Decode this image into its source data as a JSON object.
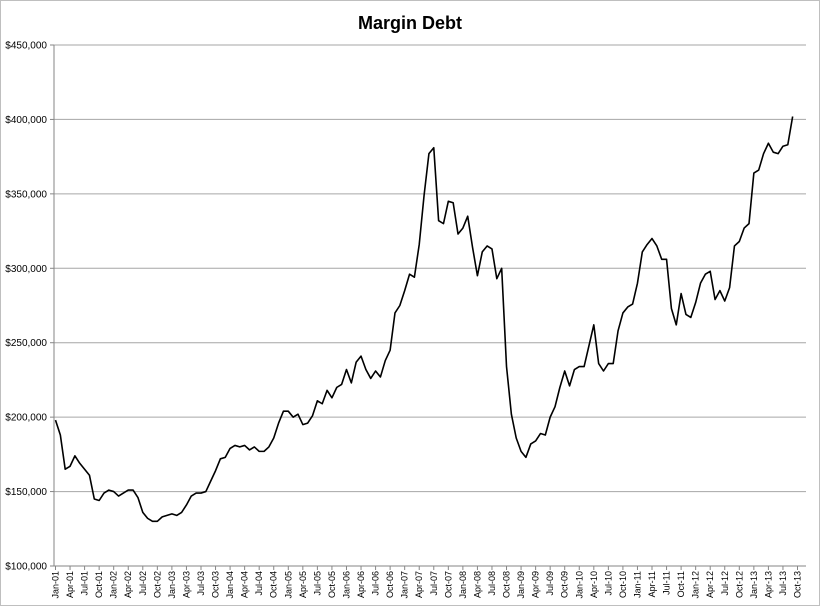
{
  "chart_data": {
    "type": "line",
    "title": "Margin Debt",
    "xlabel": "",
    "ylabel": "",
    "ylim": [
      100000,
      450000
    ],
    "yticks": [
      100000,
      150000,
      200000,
      250000,
      300000,
      350000,
      400000,
      450000
    ],
    "ytick_labels": [
      "$100,000",
      "$150,000",
      "$200,000",
      "$250,000",
      "$300,000",
      "$350,000",
      "$400,000",
      "$450,000"
    ],
    "xtick_labels": [
      "Jan-01",
      "Apr-01",
      "Jul-01",
      "Oct-01",
      "Jan-02",
      "Apr-02",
      "Jul-02",
      "Oct-02",
      "Jan-03",
      "Apr-03",
      "Jul-03",
      "Oct-03",
      "Jan-04",
      "Apr-04",
      "Jul-04",
      "Oct-04",
      "Jan-05",
      "Apr-05",
      "Jul-05",
      "Oct-05",
      "Jan-06",
      "Apr-06",
      "Jul-06",
      "Oct-06",
      "Jan-07",
      "Apr-07",
      "Jul-07",
      "Oct-07",
      "Jan-08",
      "Apr-08",
      "Jul-08",
      "Oct-08",
      "Jan-09",
      "Apr-09",
      "Jul-09",
      "Oct-09",
      "Jan-10",
      "Apr-10",
      "Jul-10",
      "Oct-10",
      "Jan-11",
      "Apr-11",
      "Jul-11",
      "Oct-11",
      "Jan-12",
      "Apr-12",
      "Jul-12",
      "Oct-12",
      "Jan-13",
      "Apr-13",
      "Jul-13",
      "Oct-13"
    ],
    "grid": true,
    "legend": "none",
    "series": [
      {
        "color": "#000000",
        "values": [
          198000,
          188000,
          165000,
          167000,
          174000,
          169000,
          165000,
          161000,
          145000,
          144000,
          149000,
          151000,
          150000,
          147000,
          149000,
          151000,
          151000,
          146000,
          136000,
          132000,
          130000,
          130000,
          133000,
          134000,
          135000,
          134000,
          136000,
          141000,
          147000,
          149000,
          149000,
          150000,
          157000,
          164000,
          172000,
          173000,
          179000,
          181000,
          180000,
          181000,
          178000,
          180000,
          177000,
          177000,
          180000,
          186000,
          196000,
          204000,
          204000,
          200000,
          202000,
          195000,
          196000,
          201000,
          211000,
          209000,
          218000,
          213000,
          220000,
          222000,
          232000,
          223000,
          237000,
          241000,
          232000,
          226000,
          231000,
          227000,
          238000,
          245000,
          270000,
          275000,
          285000,
          296000,
          294000,
          316000,
          349000,
          377000,
          381000,
          332000,
          330000,
          345000,
          344000,
          323000,
          327000,
          335000,
          314000,
          295000,
          311000,
          315000,
          313000,
          293000,
          300000,
          234000,
          202000,
          186000,
          177000,
          173000,
          182000,
          184000,
          189000,
          188000,
          200000,
          207000,
          220000,
          231000,
          221000,
          232000,
          234000,
          234000,
          248000,
          262000,
          236000,
          231000,
          236000,
          236000,
          258000,
          270000,
          274000,
          276000,
          290000,
          311000,
          316000,
          320000,
          315000,
          306000,
          306000,
          273000,
          262000,
          283000,
          269000,
          267000,
          277000,
          290000,
          296000,
          298000,
          279000,
          285000,
          278000,
          287000,
          315000,
          318000,
          327000,
          330000,
          364000,
          366000,
          377000,
          384000,
          378000,
          377000,
          382000,
          383000,
          402000
        ]
      }
    ]
  }
}
